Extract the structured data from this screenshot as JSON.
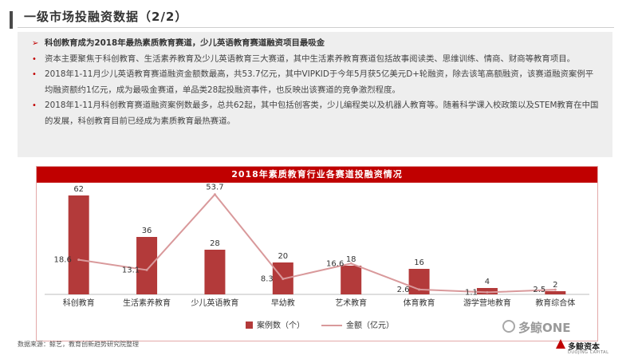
{
  "page": {
    "title": "一级市场投融资数据（2/2）"
  },
  "bullets": [
    {
      "marker": "➢",
      "text": "科创教育成为2018年最热素质教育赛道，少儿英语教育赛道融资项目最吸金",
      "bold": true
    },
    {
      "marker": "•",
      "text": "资本主要聚焦于科创教育、生活素养教育及少儿英语教育三大赛道，其中生活素养教育赛道包括故事阅读类、思维训练、情商、财商等教育项目。"
    },
    {
      "marker": "•",
      "text": "2018年1-11月少儿英语教育赛道融资金额数最高，共53.7亿元，其中VIPKID于今年5月获5亿美元D+轮融资，除去该笔高额融资，该赛道融资案例平均融资额约1亿元，成为最吸金赛道，单品类28起投融资事件，也反映出该赛道的竞争激烈程度。"
    },
    {
      "marker": "•",
      "text": "2018年1-11月科创教育赛道融资案例数最多，总共62起，其中包括创客类，少儿编程类以及机器人教育等。随着科学课入校政策以及STEM教育在中国的发展，科创教育目前已经成为素质教育最热赛道。"
    }
  ],
  "chart_data": {
    "type": "bar",
    "title": "2018年素质教育行业各赛道投融资情况",
    "categories": [
      "科创教育",
      "生活素养教育",
      "少儿英语教育",
      "早幼教",
      "艺术教育",
      "体育教育",
      "游学营地教育",
      "教育综合体"
    ],
    "series": [
      {
        "name": "案例数（个）",
        "type": "bar",
        "color": "#b33a3a",
        "values": [
          62,
          36,
          28,
          20,
          18,
          16,
          4,
          2
        ]
      },
      {
        "name": "金额（亿元）",
        "type": "line",
        "color": "#d9999b",
        "values": [
          18.6,
          13.1,
          53.7,
          8.3,
          16.6,
          2.6,
          1.1,
          2.5
        ]
      }
    ],
    "bar_ylim": [
      0,
      70
    ],
    "line_ylim": [
      0,
      60
    ],
    "grid": false,
    "legend_position": "bottom"
  },
  "footer": {
    "source": "数据来源：鲸艺，教育创新趋势研究院整理",
    "watermark": "多鲸ONE",
    "logo_text": "多鲸资本",
    "logo_sub": "DUOJING CAPITAL"
  }
}
